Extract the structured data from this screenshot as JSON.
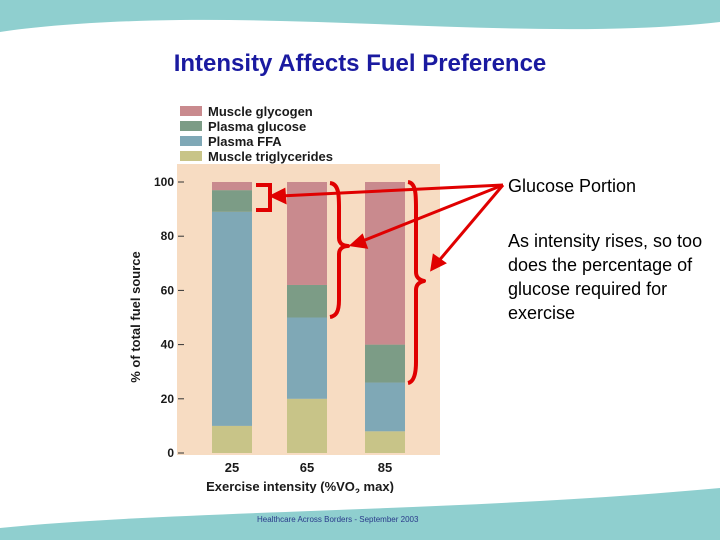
{
  "slide": {
    "title": "Intensity Affects Fuel Preference",
    "footer": "Healthcare Across Borders  -  September 2003",
    "callout_glucose": "Glucose Portion",
    "callout_intensity": "As intensity rises, so too does the percentage of glucose required for exercise"
  },
  "colors": {
    "accent_teal": "#8fcfcf",
    "annotation_red": "#e00000",
    "plot_background": "#f7dcc2"
  },
  "chart_data": {
    "type": "bar",
    "stacked": true,
    "categories": [
      "25",
      "65",
      "85"
    ],
    "xlabel": "Exercise intensity (%VO2 max)",
    "xlabel_main": "Exercise intensity (%VO",
    "xlabel_sub": "2",
    "xlabel_end": " max)",
    "ylabel": "% of total fuel source",
    "ylim": [
      0,
      100
    ],
    "yticks": [
      "0",
      "20",
      "40",
      "60",
      "80",
      "100"
    ],
    "series": [
      {
        "name": "Muscle triglycerides",
        "color": "#c8c488",
        "values": [
          10,
          20,
          8
        ]
      },
      {
        "name": "Plasma FFA",
        "color": "#7fa8b6",
        "values": [
          79,
          30,
          18
        ]
      },
      {
        "name": "Plasma glucose",
        "color": "#7c9c86",
        "values": [
          8,
          12,
          14
        ]
      },
      {
        "name": "Muscle glycogen",
        "color": "#c98a8e",
        "values": [
          3,
          38,
          60
        ]
      }
    ],
    "legend": [
      {
        "name": "Muscle glycogen",
        "color": "#c98a8e"
      },
      {
        "name": "Plasma glucose",
        "color": "#7c9c86"
      },
      {
        "name": "Plasma FFA",
        "color": "#7fa8b6"
      },
      {
        "name": "Muscle triglycerides",
        "color": "#c8c488"
      }
    ]
  }
}
